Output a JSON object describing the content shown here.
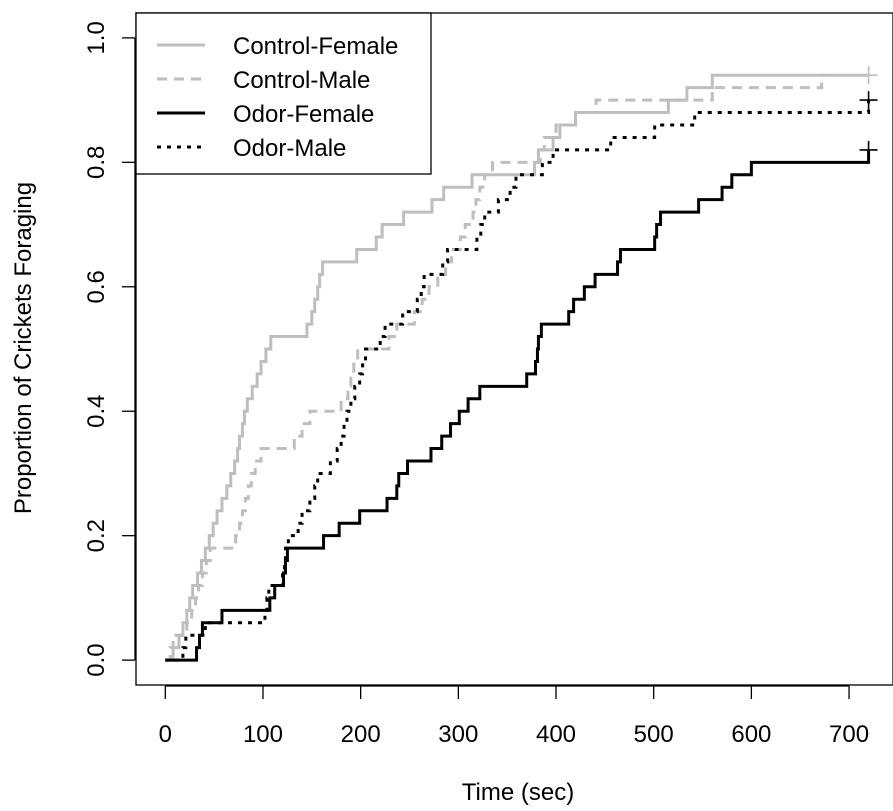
{
  "chart_data": {
    "type": "line",
    "subtype": "step (Kaplan-Meier style cumulative proportion)",
    "title": "",
    "xlabel": "Time (sec)",
    "ylabel": "Proportion of Crickets Foraging",
    "xlim": [
      -30,
      745
    ],
    "ylim": [
      -0.04,
      1.04
    ],
    "xticks": [
      0,
      100,
      200,
      300,
      400,
      500,
      600,
      700
    ],
    "xtick_labels": [
      "0",
      "100",
      "200",
      "300",
      "400",
      "500",
      "600",
      "700"
    ],
    "yticks": [
      0.0,
      0.2,
      0.4,
      0.6,
      0.8,
      1.0
    ],
    "ytick_labels": [
      "0.0",
      "0.2",
      "0.4",
      "0.6",
      "0.8",
      "1.0"
    ],
    "grid": false,
    "legend_position": "top-left",
    "series": [
      {
        "name": "Control-Female",
        "color": "#bebebe",
        "dash": "solid",
        "censor_mark": [
          720,
          0.94
        ],
        "steps": [
          [
            0,
            0
          ],
          [
            8,
            0.02
          ],
          [
            14,
            0.04
          ],
          [
            18,
            0.06
          ],
          [
            22,
            0.08
          ],
          [
            25,
            0.1
          ],
          [
            28,
            0.12
          ],
          [
            33,
            0.14
          ],
          [
            37,
            0.16
          ],
          [
            41,
            0.18
          ],
          [
            45,
            0.2
          ],
          [
            49,
            0.22
          ],
          [
            53,
            0.24
          ],
          [
            58,
            0.26
          ],
          [
            63,
            0.28
          ],
          [
            67,
            0.3
          ],
          [
            71,
            0.32
          ],
          [
            74,
            0.34
          ],
          [
            76,
            0.36
          ],
          [
            79,
            0.38
          ],
          [
            81,
            0.4
          ],
          [
            84,
            0.42
          ],
          [
            89,
            0.44
          ],
          [
            94,
            0.46
          ],
          [
            98,
            0.48
          ],
          [
            103,
            0.5
          ],
          [
            108,
            0.52
          ],
          [
            145,
            0.54
          ],
          [
            150,
            0.56
          ],
          [
            153,
            0.58
          ],
          [
            156,
            0.6
          ],
          [
            158,
            0.62
          ],
          [
            161,
            0.64
          ],
          [
            196,
            0.66
          ],
          [
            216,
            0.68
          ],
          [
            222,
            0.7
          ],
          [
            244,
            0.72
          ],
          [
            273,
            0.74
          ],
          [
            285,
            0.76
          ],
          [
            314,
            0.78
          ],
          [
            378,
            0.8
          ],
          [
            382,
            0.82
          ],
          [
            397,
            0.84
          ],
          [
            404,
            0.86
          ],
          [
            420,
            0.88
          ],
          [
            515,
            0.9
          ],
          [
            534,
            0.92
          ],
          [
            560,
            0.94
          ],
          [
            720,
            0.94
          ]
        ]
      },
      {
        "name": "Control-Male",
        "color": "#bebebe",
        "dash": "dashed",
        "steps": [
          [
            0,
            0
          ],
          [
            5,
            0.02
          ],
          [
            8,
            0.04
          ],
          [
            22,
            0.06
          ],
          [
            27,
            0.08
          ],
          [
            31,
            0.1
          ],
          [
            34,
            0.12
          ],
          [
            38,
            0.14
          ],
          [
            42,
            0.16
          ],
          [
            46,
            0.18
          ],
          [
            72,
            0.2
          ],
          [
            76,
            0.22
          ],
          [
            79,
            0.24
          ],
          [
            82,
            0.26
          ],
          [
            85,
            0.28
          ],
          [
            88,
            0.3
          ],
          [
            92,
            0.32
          ],
          [
            98,
            0.34
          ],
          [
            132,
            0.36
          ],
          [
            140,
            0.38
          ],
          [
            148,
            0.4
          ],
          [
            180,
            0.42
          ],
          [
            187,
            0.44
          ],
          [
            190,
            0.46
          ],
          [
            193,
            0.48
          ],
          [
            197,
            0.5
          ],
          [
            229,
            0.52
          ],
          [
            237,
            0.54
          ],
          [
            255,
            0.56
          ],
          [
            263,
            0.58
          ],
          [
            270,
            0.6
          ],
          [
            279,
            0.62
          ],
          [
            287,
            0.64
          ],
          [
            293,
            0.66
          ],
          [
            302,
            0.68
          ],
          [
            307,
            0.7
          ],
          [
            315,
            0.72
          ],
          [
            318,
            0.74
          ],
          [
            322,
            0.76
          ],
          [
            327,
            0.78
          ],
          [
            335,
            0.8
          ],
          [
            384,
            0.82
          ],
          [
            388,
            0.84
          ],
          [
            400,
            0.86
          ],
          [
            420,
            0.88
          ],
          [
            441,
            0.9
          ],
          [
            560,
            0.92
          ],
          [
            672,
            0.94
          ],
          [
            676,
            0.94
          ]
        ]
      },
      {
        "name": "Odor-Female",
        "color": "#000000",
        "dash": "solid",
        "censor_mark": [
          720,
          0.82
        ],
        "steps": [
          [
            0,
            0
          ],
          [
            32,
            0.02
          ],
          [
            35,
            0.04
          ],
          [
            38,
            0.06
          ],
          [
            58,
            0.08
          ],
          [
            107,
            0.1
          ],
          [
            112,
            0.12
          ],
          [
            121,
            0.14
          ],
          [
            123,
            0.16
          ],
          [
            125,
            0.18
          ],
          [
            162,
            0.2
          ],
          [
            178,
            0.22
          ],
          [
            199,
            0.24
          ],
          [
            227,
            0.26
          ],
          [
            237,
            0.28
          ],
          [
            239,
            0.3
          ],
          [
            248,
            0.32
          ],
          [
            272,
            0.34
          ],
          [
            283,
            0.36
          ],
          [
            292,
            0.38
          ],
          [
            301,
            0.4
          ],
          [
            310,
            0.42
          ],
          [
            322,
            0.44
          ],
          [
            370,
            0.46
          ],
          [
            379,
            0.48
          ],
          [
            381,
            0.5
          ],
          [
            382,
            0.52
          ],
          [
            385,
            0.54
          ],
          [
            413,
            0.56
          ],
          [
            418,
            0.58
          ],
          [
            429,
            0.6
          ],
          [
            440,
            0.62
          ],
          [
            463,
            0.64
          ],
          [
            466,
            0.66
          ],
          [
            501,
            0.68
          ],
          [
            503,
            0.7
          ],
          [
            507,
            0.72
          ],
          [
            546,
            0.74
          ],
          [
            570,
            0.76
          ],
          [
            580,
            0.78
          ],
          [
            600,
            0.8
          ],
          [
            720,
            0.8
          ],
          [
            720,
            0.82
          ]
        ]
      },
      {
        "name": "Odor-Male",
        "color": "#000000",
        "dash": "dotted",
        "censor_mark": [
          720,
          0.9
        ],
        "steps": [
          [
            0,
            0
          ],
          [
            18,
            0.02
          ],
          [
            21,
            0.04
          ],
          [
            41,
            0.06
          ],
          [
            102,
            0.08
          ],
          [
            104,
            0.1
          ],
          [
            106,
            0.12
          ],
          [
            120,
            0.14
          ],
          [
            122,
            0.16
          ],
          [
            123,
            0.18
          ],
          [
            126,
            0.2
          ],
          [
            136,
            0.22
          ],
          [
            140,
            0.24
          ],
          [
            148,
            0.26
          ],
          [
            153,
            0.28
          ],
          [
            156,
            0.3
          ],
          [
            169,
            0.32
          ],
          [
            176,
            0.34
          ],
          [
            180,
            0.36
          ],
          [
            183,
            0.38
          ],
          [
            186,
            0.4
          ],
          [
            190,
            0.42
          ],
          [
            194,
            0.44
          ],
          [
            199,
            0.46
          ],
          [
            202,
            0.48
          ],
          [
            205,
            0.5
          ],
          [
            220,
            0.52
          ],
          [
            225,
            0.54
          ],
          [
            243,
            0.56
          ],
          [
            258,
            0.58
          ],
          [
            262,
            0.6
          ],
          [
            265,
            0.62
          ],
          [
            284,
            0.64
          ],
          [
            289,
            0.66
          ],
          [
            319,
            0.68
          ],
          [
            323,
            0.7
          ],
          [
            327,
            0.72
          ],
          [
            341,
            0.74
          ],
          [
            353,
            0.76
          ],
          [
            359,
            0.78
          ],
          [
            386,
            0.8
          ],
          [
            397,
            0.82
          ],
          [
            456,
            0.84
          ],
          [
            501,
            0.86
          ],
          [
            542,
            0.88
          ],
          [
            719,
            0.88
          ],
          [
            720,
            0.9
          ]
        ]
      }
    ]
  }
}
